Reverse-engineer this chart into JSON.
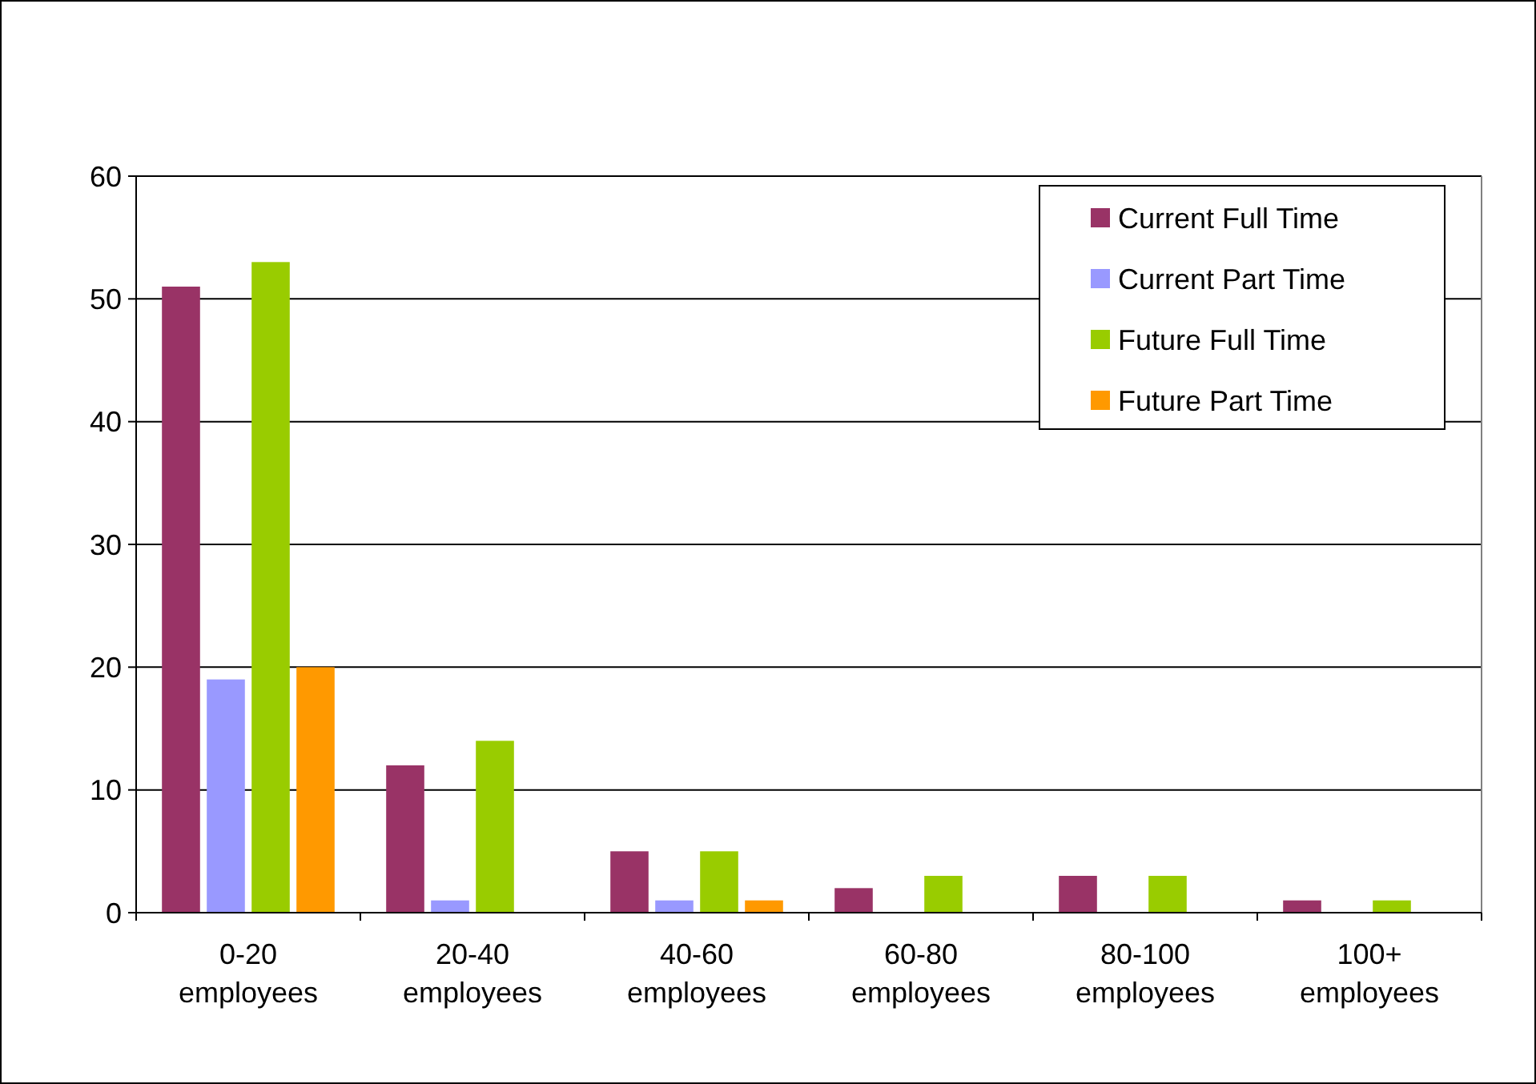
{
  "chart_data": {
    "type": "bar",
    "categories": [
      "0-20 employees",
      "20-40 employees",
      "40-60 employees",
      "60-80 employees",
      "80-100 employees",
      "100+ employees"
    ],
    "series": [
      {
        "name": "Current Full Time",
        "color": "#993366",
        "values": [
          51,
          12,
          5,
          2,
          3,
          1
        ]
      },
      {
        "name": "Current Part Time",
        "color": "#9999ff",
        "values": [
          19,
          1,
          1,
          0,
          0,
          0
        ]
      },
      {
        "name": "Future Full Time",
        "color": "#99cc00",
        "values": [
          53,
          14,
          5,
          3,
          3,
          1
        ]
      },
      {
        "name": "Future Part Time",
        "color": "#ff9900",
        "values": [
          20,
          0,
          1,
          0,
          0,
          0
        ]
      }
    ],
    "ylim": [
      0,
      60
    ],
    "yticks": [
      0,
      10,
      20,
      30,
      40,
      50,
      60
    ],
    "grid": "y",
    "legend": "top right"
  }
}
